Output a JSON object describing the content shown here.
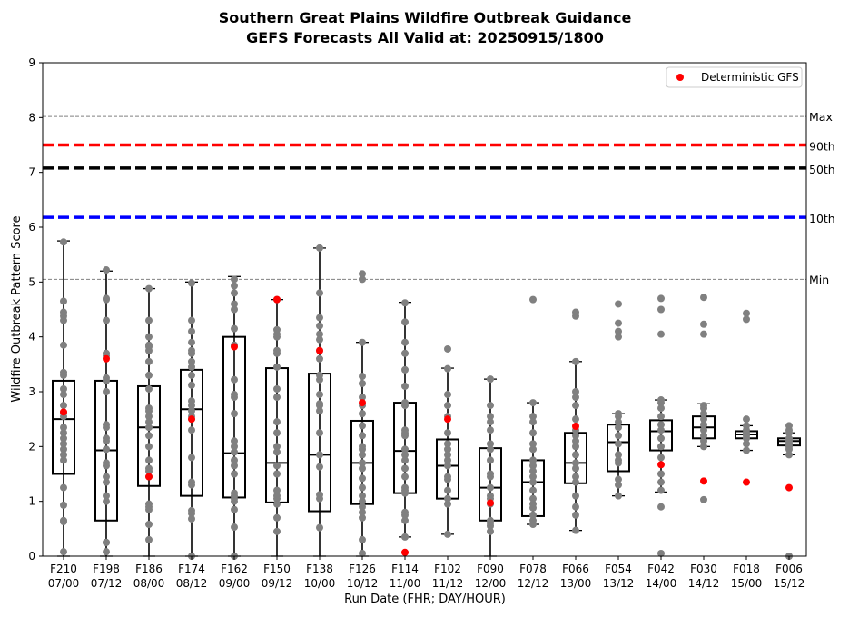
{
  "chart_data": {
    "type": "box",
    "title": "Southern Great Plains Wildfire Outbreak Guidance",
    "subtitle": "GEFS Forecasts All Valid at: 20250915/1800",
    "xlabel": "Run Date (FHR; DAY/HOUR)",
    "ylabel": "Wildfire Outbreak Pattern Score",
    "ylim": [
      0,
      9
    ],
    "yticks": [
      "0",
      "1",
      "2",
      "3",
      "4",
      "5",
      "6",
      "7",
      "8",
      "9"
    ],
    "legend": {
      "position": "top-right",
      "label": "Deterministic GFS"
    },
    "reference_lines": [
      {
        "label": "Max",
        "value": 8.02,
        "style": "dashed-thin",
        "color": "#808080"
      },
      {
        "label": "90th",
        "value": 7.5,
        "style": "dashed-thick",
        "color": "#ff0000"
      },
      {
        "label": "50th",
        "value": 7.08,
        "style": "dashed-thick",
        "color": "#000000"
      },
      {
        "label": "10th",
        "value": 6.18,
        "style": "dashed-thick",
        "color": "#0000ff"
      },
      {
        "label": "Min",
        "value": 5.05,
        "style": "dashed-thin",
        "color": "#808080"
      }
    ],
    "colors": {
      "members": "#808080",
      "deterministic": "#ff0000",
      "box": "#000000"
    },
    "categories": [
      {
        "fhr": "F210",
        "dayhour": "07/00",
        "box": {
          "wlo": 0.0,
          "q1": 1.5,
          "med": 2.5,
          "q3": 3.2,
          "whi": 5.75
        },
        "gfs": 2.63,
        "members": [
          0.08,
          0.63,
          0.65,
          0.93,
          1.25,
          1.75,
          1.85,
          1.95,
          2.05,
          2.15,
          2.25,
          2.35,
          2.55,
          2.62,
          2.75,
          2.95,
          3.05,
          3.3,
          3.35,
          3.85,
          4.3,
          4.38,
          4.45,
          4.65,
          5.73
        ]
      },
      {
        "fhr": "F198",
        "dayhour": "07/12",
        "box": {
          "wlo": 0.0,
          "q1": 0.65,
          "med": 1.93,
          "q3": 3.2,
          "whi": 5.2
        },
        "gfs": 3.6,
        "members": [
          0.08,
          0.25,
          0.25,
          1.0,
          1.1,
          1.35,
          1.45,
          1.65,
          1.7,
          1.95,
          2.1,
          2.15,
          2.35,
          2.4,
          3.0,
          3.2,
          3.25,
          3.65,
          3.7,
          4.3,
          4.68,
          4.7,
          5.22
        ]
      },
      {
        "fhr": "F186",
        "dayhour": "08/00",
        "box": {
          "wlo": 0.0,
          "q1": 1.28,
          "med": 2.35,
          "q3": 3.1,
          "whi": 4.88
        },
        "gfs": 1.45,
        "members": [
          0.3,
          0.58,
          0.85,
          0.9,
          0.95,
          1.45,
          1.55,
          1.6,
          1.75,
          2.0,
          2.2,
          2.35,
          2.45,
          2.55,
          2.65,
          2.7,
          3.05,
          3.3,
          3.55,
          3.75,
          3.82,
          3.85,
          4.0,
          4.3,
          4.88
        ]
      },
      {
        "fhr": "F174",
        "dayhour": "08/12",
        "box": {
          "wlo": 0.0,
          "q1": 1.1,
          "med": 2.68,
          "q3": 3.4,
          "whi": 5.0
        },
        "gfs": 2.5,
        "members": [
          0.0,
          0.68,
          0.78,
          0.83,
          1.3,
          1.35,
          1.8,
          2.3,
          2.5,
          2.55,
          2.65,
          2.75,
          2.83,
          3.12,
          3.3,
          3.45,
          3.55,
          3.7,
          3.75,
          3.9,
          4.1,
          4.3,
          4.98
        ]
      },
      {
        "fhr": "F162",
        "dayhour": "09/00",
        "box": {
          "wlo": 0.0,
          "q1": 1.07,
          "med": 1.88,
          "q3": 4.0,
          "whi": 5.1
        },
        "gfs": 3.82,
        "members": [
          0.0,
          0.53,
          0.85,
          1.0,
          1.05,
          1.1,
          1.15,
          1.5,
          1.65,
          1.75,
          1.9,
          2.0,
          2.1,
          2.6,
          2.9,
          2.95,
          3.22,
          3.85,
          4.15,
          4.5,
          4.6,
          4.8,
          4.93,
          5.05
        ]
      },
      {
        "fhr": "F150",
        "dayhour": "09/12",
        "box": {
          "wlo": 0.0,
          "q1": 0.98,
          "med": 1.7,
          "q3": 3.43,
          "whi": 4.68
        },
        "gfs": 4.68,
        "members": [
          0.45,
          0.7,
          0.95,
          1.05,
          1.1,
          1.2,
          1.5,
          1.65,
          1.9,
          2.0,
          2.25,
          2.45,
          2.9,
          3.05,
          3.45,
          3.7,
          3.75,
          4.0,
          4.05,
          4.13,
          4.68
        ]
      },
      {
        "fhr": "F138",
        "dayhour": "10/00",
        "box": {
          "wlo": 0.0,
          "q1": 0.82,
          "med": 1.85,
          "q3": 3.33,
          "whi": 5.62
        },
        "gfs": 3.75,
        "members": [
          0.52,
          1.05,
          1.12,
          1.63,
          1.85,
          2.25,
          2.65,
          2.75,
          2.78,
          2.95,
          3.22,
          3.3,
          3.6,
          3.75,
          3.95,
          4.05,
          4.2,
          4.35,
          4.8,
          5.62
        ]
      },
      {
        "fhr": "F126",
        "dayhour": "10/12",
        "box": {
          "wlo": 0.0,
          "q1": 0.95,
          "med": 1.7,
          "q3": 2.47,
          "whi": 3.9
        },
        "gfs": 2.8,
        "members": [
          0.05,
          0.3,
          0.7,
          0.8,
          0.9,
          1.0,
          1.1,
          1.25,
          1.42,
          1.6,
          1.7,
          1.85,
          1.95,
          2.0,
          2.2,
          2.38,
          2.6,
          2.75,
          2.9,
          3.15,
          3.28,
          3.9,
          5.05,
          5.15
        ]
      },
      {
        "fhr": "F114",
        "dayhour": "11/00",
        "box": {
          "wlo": 0.35,
          "q1": 1.15,
          "med": 1.92,
          "q3": 2.8,
          "whi": 4.63
        },
        "gfs": 0.07,
        "members": [
          0.35,
          0.65,
          0.75,
          0.8,
          1.15,
          1.2,
          1.25,
          1.45,
          1.6,
          1.75,
          1.85,
          1.95,
          2.2,
          2.25,
          2.3,
          2.75,
          2.8,
          3.1,
          3.4,
          3.7,
          3.9,
          4.27,
          4.62
        ]
      },
      {
        "fhr": "F102",
        "dayhour": "11/12",
        "box": {
          "wlo": 0.4,
          "q1": 1.05,
          "med": 1.65,
          "q3": 2.13,
          "whi": 3.43
        },
        "gfs": 2.5,
        "members": [
          0.4,
          0.95,
          1.05,
          1.2,
          1.4,
          1.45,
          1.65,
          1.75,
          1.85,
          1.95,
          2.05,
          2.25,
          2.55,
          2.75,
          2.95,
          3.42,
          3.78
        ]
      },
      {
        "fhr": "F090",
        "dayhour": "12/00",
        "box": {
          "wlo": 0.0,
          "q1": 0.65,
          "med": 1.25,
          "q3": 1.97,
          "whi": 3.23
        },
        "gfs": 0.97,
        "members": [
          0.45,
          0.55,
          0.6,
          0.65,
          0.95,
          1.05,
          1.1,
          1.25,
          1.45,
          1.5,
          1.75,
          1.95,
          2.05,
          2.3,
          2.45,
          2.55,
          2.75,
          3.23
        ]
      },
      {
        "fhr": "F078",
        "dayhour": "12/12",
        "box": {
          "wlo": 0.58,
          "q1": 0.73,
          "med": 1.35,
          "q3": 1.75,
          "whi": 2.8
        },
        "gfs": null,
        "members": [
          0.58,
          0.65,
          0.75,
          0.88,
          0.95,
          1.05,
          1.2,
          1.35,
          1.45,
          1.55,
          1.65,
          1.75,
          1.95,
          2.05,
          2.25,
          2.45,
          2.55,
          2.8,
          4.68
        ]
      },
      {
        "fhr": "F066",
        "dayhour": "13/00",
        "box": {
          "wlo": 0.47,
          "q1": 1.33,
          "med": 1.7,
          "q3": 2.25,
          "whi": 3.55
        },
        "gfs": 2.37,
        "members": [
          0.47,
          0.75,
          0.9,
          1.1,
          1.35,
          1.45,
          1.6,
          1.7,
          1.85,
          2.0,
          2.1,
          2.2,
          2.3,
          2.5,
          2.75,
          2.9,
          3.0,
          3.55,
          4.38,
          4.45
        ]
      },
      {
        "fhr": "F054",
        "dayhour": "13/12",
        "box": {
          "wlo": 1.1,
          "q1": 1.55,
          "med": 2.08,
          "q3": 2.4,
          "whi": 2.6
        },
        "gfs": null,
        "members": [
          1.1,
          1.3,
          1.4,
          1.7,
          1.75,
          1.85,
          2.05,
          2.2,
          2.35,
          2.45,
          2.55,
          2.6,
          4.0,
          4.1,
          4.25,
          4.6
        ]
      },
      {
        "fhr": "F042",
        "dayhour": "14/00",
        "box": {
          "wlo": 1.17,
          "q1": 1.93,
          "med": 2.28,
          "q3": 2.48,
          "whi": 2.85
        },
        "gfs": 1.67,
        "members": [
          0.05,
          0.9,
          1.2,
          1.35,
          1.5,
          1.8,
          2.0,
          2.15,
          2.3,
          2.4,
          2.55,
          2.7,
          2.8,
          2.85,
          4.05,
          4.5,
          4.7
        ]
      },
      {
        "fhr": "F030",
        "dayhour": "14/12",
        "box": {
          "wlo": 2.0,
          "q1": 2.15,
          "med": 2.35,
          "q3": 2.55,
          "whi": 2.78
        },
        "gfs": 1.37,
        "members": [
          1.03,
          2.0,
          2.1,
          2.2,
          2.3,
          2.4,
          2.5,
          2.6,
          2.7,
          2.75,
          4.05,
          4.23,
          4.72
        ]
      },
      {
        "fhr": "F018",
        "dayhour": "15/00",
        "box": {
          "wlo": 1.93,
          "q1": 2.15,
          "med": 2.22,
          "q3": 2.28,
          "whi": 2.38
        },
        "gfs": 1.35,
        "members": [
          1.93,
          2.05,
          2.15,
          2.2,
          2.25,
          2.3,
          2.38,
          2.5,
          4.32,
          4.43
        ]
      },
      {
        "fhr": "F006",
        "dayhour": "15/12",
        "box": {
          "wlo": 1.85,
          "q1": 2.02,
          "med": 2.1,
          "q3": 2.15,
          "whi": 2.25
        },
        "gfs": 1.25,
        "members": [
          0.0,
          1.85,
          1.95,
          2.0,
          2.05,
          2.1,
          2.15,
          2.25,
          2.3,
          2.38
        ]
      }
    ]
  }
}
